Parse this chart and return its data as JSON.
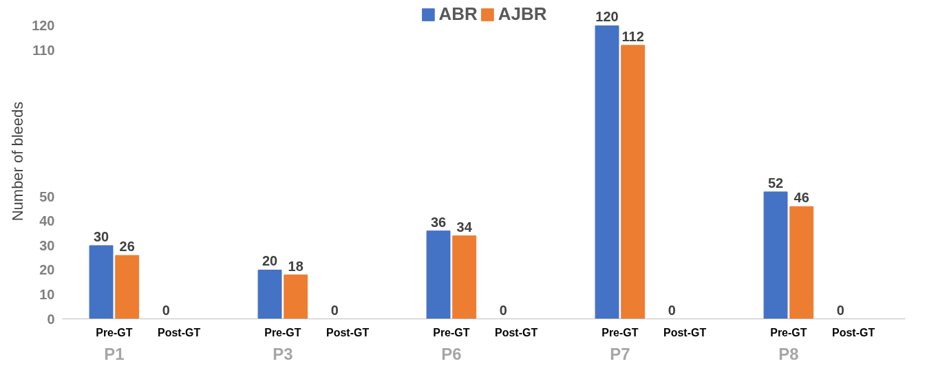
{
  "chart_data": {
    "type": "bar",
    "ylabel": "Number of bleeds",
    "categories": [
      "Pre-GT",
      "Post-GT",
      "Pre-GT",
      "Post-GT",
      "Pre-GT",
      "Post-GT",
      "Pre-GT",
      "Post-GT",
      "Pre-GT",
      "Post-GT"
    ],
    "series": [
      {
        "name": "ABR",
        "color": "#4472c4",
        "values": [
          30,
          0,
          20,
          0,
          36,
          0,
          120,
          0,
          52,
          0
        ],
        "value_labels": [
          "30",
          "0",
          "20",
          "0",
          "36",
          "0",
          "120",
          "0",
          "52",
          "0"
        ]
      },
      {
        "name": "AJBR",
        "color": "#ed7d31",
        "values": [
          26,
          0,
          18,
          0,
          34,
          0,
          112,
          0,
          46,
          0
        ],
        "value_labels": [
          "26",
          null,
          "18",
          null,
          "34",
          null,
          "112",
          null,
          "46",
          null
        ]
      }
    ],
    "annotations": [
      "P1",
      "P3",
      "P6",
      "P7",
      "P8"
    ],
    "ylim": [
      0,
      129
    ],
    "yticks": [
      0,
      10,
      20,
      30,
      40,
      50,
      110,
      120
    ],
    "grid": false,
    "legend": "top"
  }
}
